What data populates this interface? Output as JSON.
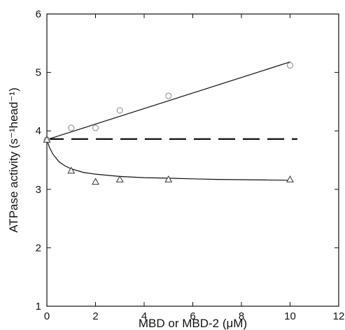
{
  "chart_data": {
    "type": "scatter",
    "xlabel": "MBD or MBD-2 (μM)",
    "ylabel": "ATPase activity (s⁻¹head⁻¹)",
    "xlim": [
      0,
      12
    ],
    "ylim": [
      1,
      6
    ],
    "x_ticks": [
      0,
      2,
      4,
      6,
      8,
      10,
      12
    ],
    "y_ticks": [
      1,
      2,
      3,
      4,
      5,
      6
    ],
    "grid": false,
    "legend": "none",
    "series": [
      {
        "marker": "circle",
        "points": [
          {
            "x": 0,
            "y": 3.85
          },
          {
            "x": 1,
            "y": 4.05
          },
          {
            "x": 2,
            "y": 4.05
          },
          {
            "x": 3,
            "y": 4.35
          },
          {
            "x": 5,
            "y": 4.6
          },
          {
            "x": 10,
            "y": 5.12
          }
        ],
        "fit": {
          "kind": "linear",
          "x": [
            0,
            10
          ],
          "y": [
            3.85,
            5.18
          ]
        }
      },
      {
        "marker": "triangle",
        "points": [
          {
            "x": 0,
            "y": 3.85
          },
          {
            "x": 1,
            "y": 3.32
          },
          {
            "x": 2,
            "y": 3.13
          },
          {
            "x": 3,
            "y": 3.17
          },
          {
            "x": 5,
            "y": 3.17
          },
          {
            "x": 10,
            "y": 3.17
          }
        ],
        "fit": {
          "kind": "curve",
          "x": [
            0,
            0.1,
            0.25,
            0.5,
            0.75,
            1,
            1.5,
            2,
            3,
            4,
            5,
            6,
            7,
            8,
            9,
            10
          ],
          "y": [
            3.85,
            3.72,
            3.6,
            3.47,
            3.4,
            3.35,
            3.29,
            3.26,
            3.22,
            3.2,
            3.19,
            3.18,
            3.17,
            3.165,
            3.16,
            3.155
          ]
        }
      }
    ],
    "reference_line": {
      "style": "dashed",
      "y": 3.86,
      "x": [
        0,
        10.3
      ]
    }
  }
}
